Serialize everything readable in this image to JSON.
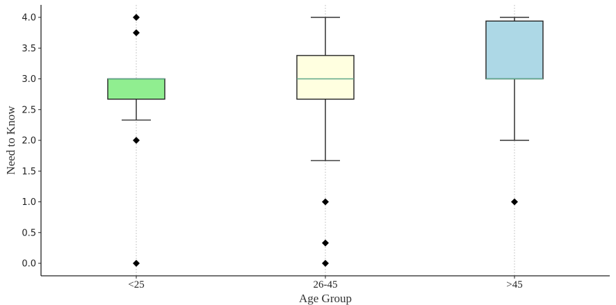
{
  "chart_data": {
    "type": "box",
    "title": "",
    "xlabel": "Age Group",
    "ylabel": "Need to Know",
    "ylim": [
      -0.2,
      4.2
    ],
    "yticks": [
      "0.0",
      "0.5",
      "1.0",
      "1.5",
      "2.0",
      "2.5",
      "3.0",
      "3.5",
      "4.0"
    ],
    "categories": [
      "<25",
      "26-45",
      ">45"
    ],
    "grid": "vertical dashed at categories",
    "series": [
      {
        "name": "<25",
        "color": "#90ee90",
        "whisker_low": 2.33,
        "q1": 2.67,
        "median": 3.0,
        "q3": 3.0,
        "whisker_high": 3.0,
        "outliers": [
          4.0,
          3.75,
          2.0,
          0.0
        ]
      },
      {
        "name": "26-45",
        "color": "#ffffe0",
        "whisker_low": 1.67,
        "q1": 2.67,
        "median": 3.0,
        "q3": 3.38,
        "whisker_high": 4.0,
        "outliers": [
          1.0,
          0.33,
          0.0
        ]
      },
      {
        "name": ">45",
        "color": "#add8e6",
        "whisker_low": 2.0,
        "q1": 3.0,
        "median": 3.0,
        "q3": 3.94,
        "whisker_high": 4.0,
        "outliers": [
          1.0
        ]
      }
    ],
    "median_color": "#5fa88a"
  }
}
